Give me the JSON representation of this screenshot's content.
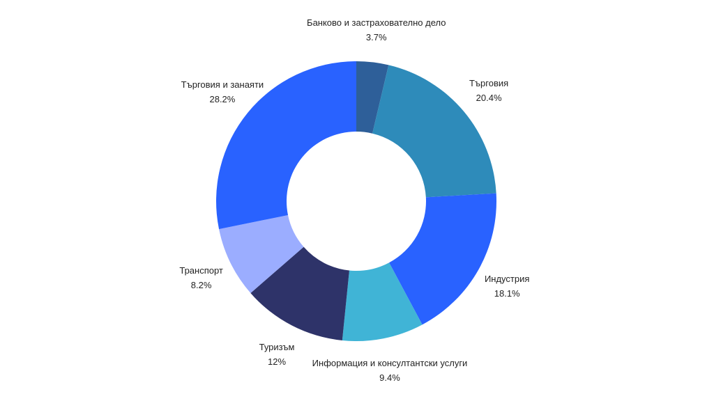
{
  "chart_data": {
    "type": "donut",
    "categories": [
      "Банково и застрахователно дело",
      "Търговия",
      "Индустрия",
      "Информация и консултантски услуги",
      "Туризъм",
      "Транспорт",
      "Търговия и занаяти"
    ],
    "values": [
      3.7,
      20.4,
      18.1,
      9.4,
      12,
      8.2,
      28.2
    ],
    "value_labels": [
      "3.7%",
      "20.4%",
      "18.1%",
      "9.4%",
      "12%",
      "8.2%",
      "28.2%"
    ],
    "colors": [
      "#2e5f99",
      "#2e8bba",
      "#2962ff",
      "#40b4d6",
      "#2e3369",
      "#9badff",
      "#2962ff"
    ]
  }
}
